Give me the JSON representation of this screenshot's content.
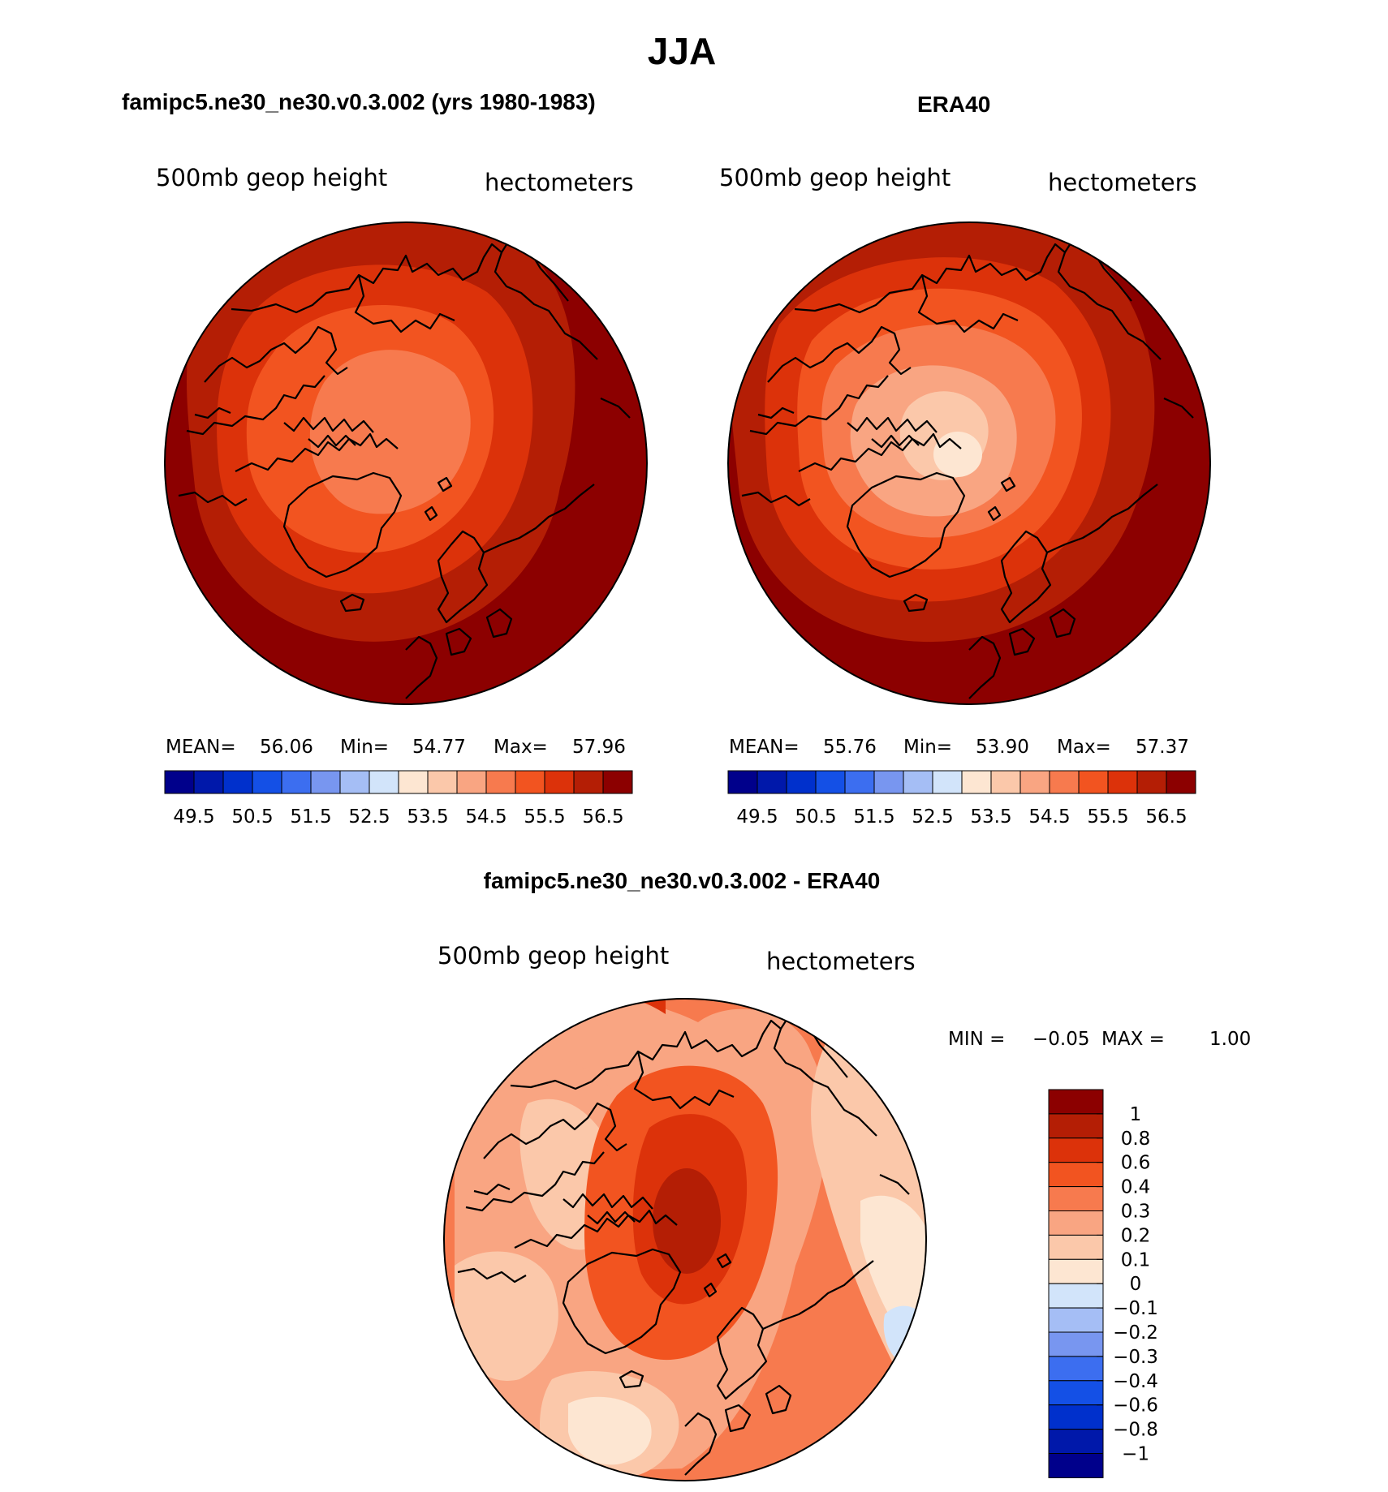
{
  "season": "JJA",
  "panels": [
    {
      "title": "famipc5.ne30_ne30.v0.3.002 (yrs 1980-1983)",
      "left_label": "500mb geop height",
      "right_label": "hectometers",
      "stats": {
        "mean_label": "MEAN=",
        "mean": "56.06",
        "min_label": "Min=",
        "min": "54.77",
        "max_label": "Max=",
        "max": "57.96"
      }
    },
    {
      "title": "ERA40",
      "left_label": "500mb geop height",
      "right_label": "hectometers",
      "stats": {
        "mean_label": "MEAN=",
        "mean": "55.76",
        "min_label": "Min=",
        "min": "53.90",
        "max_label": "Max=",
        "max": "57.37"
      }
    }
  ],
  "diff_panel": {
    "title": "famipc5.ne30_ne30.v0.3.002 - ERA40",
    "left_label": "500mb geop height",
    "right_label": "hectometers",
    "minmax": {
      "min_label": "MIN =",
      "min": "−0.05",
      "max_label": "MAX =",
      "max": "1.00"
    }
  },
  "abs_colorbar": {
    "colors": [
      "#00008B",
      "#0018AA",
      "#0030CC",
      "#1450E6",
      "#3C6EF0",
      "#7896F0",
      "#A5BEF5",
      "#D2E4FA",
      "#FDE6D2",
      "#FBC8AA",
      "#F9A582",
      "#F77A4E",
      "#F25420",
      "#DC320A",
      "#B41E05",
      "#8C0000"
    ],
    "tick_labels": [
      "49.5",
      "50.5",
      "51.5",
      "52.5",
      "53.5",
      "54.5",
      "55.5",
      "56.5"
    ]
  },
  "diff_colorbar": {
    "colors_top_to_bottom": [
      "#8C0000",
      "#B41E05",
      "#DC320A",
      "#F25420",
      "#F77A4E",
      "#F9A582",
      "#FBC8AA",
      "#FDE6D2",
      "#D2E4FA",
      "#A5BEF5",
      "#7896F0",
      "#3C6EF0",
      "#1450E6",
      "#0030CC",
      "#0018AA",
      "#00008B"
    ],
    "tick_labels": [
      "1",
      "0.8",
      "0.6",
      "0.4",
      "0.3",
      "0.2",
      "0.1",
      "0",
      "−0.1",
      "−0.2",
      "−0.3",
      "−0.4",
      "−0.6",
      "−0.8",
      "−1"
    ]
  }
}
